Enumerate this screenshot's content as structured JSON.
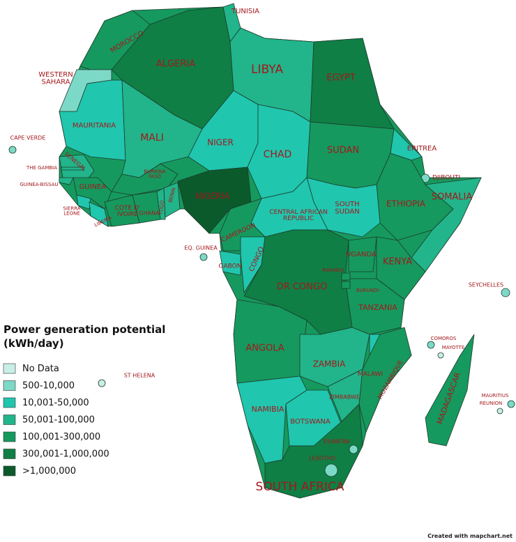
{
  "title": [
    "Power generation potential",
    "(kWh/day)"
  ],
  "legend": [
    {
      "label": "No Data",
      "color": "#c9eee8"
    },
    {
      "label": "500-10,000",
      "color": "#7dd9c7"
    },
    {
      "label": "10,001-50,000",
      "color": "#20c6ae"
    },
    {
      "label": "50,001-100,000",
      "color": "#22b48a"
    },
    {
      "label": "100,001-300,000",
      "color": "#16995e"
    },
    {
      "label": "300,001-1,000,000",
      "color": "#0f7f45"
    },
    {
      "label": ">1,000,000",
      "color": "#0b5a2c"
    }
  ],
  "countries": [
    {
      "label": [
        "MOROCCO"
      ],
      "color": "#16995e"
    },
    {
      "label": [
        "WESTERN",
        "SAHARA"
      ],
      "color": "#7dd9c7"
    },
    {
      "label": [
        "ALGERIA"
      ],
      "color": "#0f7f45"
    },
    {
      "label": [
        "TUNISIA"
      ],
      "color": "#22b48a"
    },
    {
      "label": [
        "LIBYA"
      ],
      "color": "#22b48a"
    },
    {
      "label": [
        "EGYPT"
      ],
      "color": "#0f7f45"
    },
    {
      "label": [
        "MAURITANIA"
      ],
      "color": "#20c6ae"
    },
    {
      "label": [
        "MALI"
      ],
      "color": "#22b48a"
    },
    {
      "label": [
        "NIGER"
      ],
      "color": "#20c6ae"
    },
    {
      "label": [
        "CHAD"
      ],
      "color": "#20c6ae"
    },
    {
      "label": [
        "SUDAN"
      ],
      "color": "#16995e"
    },
    {
      "label": [
        "ERITREA"
      ],
      "color": "#20c6ae"
    },
    {
      "label": [
        "DJIBOUTI"
      ],
      "color": "#7dd9c7"
    },
    {
      "label": [
        "ETHIOPIA"
      ],
      "color": "#16995e"
    },
    {
      "label": [
        "SOMALIA"
      ],
      "color": "#22b48a"
    },
    {
      "label": [
        "SOUTH",
        "SUDAN"
      ],
      "color": "#20c6ae"
    },
    {
      "label": [
        "CENTRAL AFRICAN",
        "REPUBLIC"
      ],
      "color": "#20c6ae"
    },
    {
      "label": [
        "NIGERIA"
      ],
      "color": "#0b5a2c"
    },
    {
      "label": [
        "CAMEROON"
      ],
      "color": "#16995e"
    },
    {
      "label": [
        "GABON"
      ],
      "color": "#20c6ae"
    },
    {
      "label": [
        "CONGO"
      ],
      "color": "#20c6ae"
    },
    {
      "label": [
        "DR CONGO"
      ],
      "color": "#0f7f45"
    },
    {
      "label": [
        "UGANDA"
      ],
      "color": "#16995e"
    },
    {
      "label": [
        "KENYA"
      ],
      "color": "#16995e"
    },
    {
      "label": [
        "TANZANIA"
      ],
      "color": "#16995e"
    },
    {
      "label": [
        "RWANDA"
      ],
      "color": "#16995e"
    },
    {
      "label": [
        "BURUNDI"
      ],
      "color": "#16995e"
    },
    {
      "label": [
        "ANGOLA"
      ],
      "color": "#16995e"
    },
    {
      "label": [
        "ZAMBIA"
      ],
      "color": "#22b48a"
    },
    {
      "label": [
        "MALAWI"
      ],
      "color": "#20c6ae"
    },
    {
      "label": [
        "MOZAMBIQUE"
      ],
      "color": "#16995e"
    },
    {
      "label": [
        "NAMIBIA"
      ],
      "color": "#20c6ae"
    },
    {
      "label": [
        "BOTSWANA"
      ],
      "color": "#20c6ae"
    },
    {
      "label": [
        "ZIMBABWE"
      ],
      "color": "#22b48a"
    },
    {
      "label": [
        "SOUTH AFRICA"
      ],
      "color": "#0f7f45"
    },
    {
      "label": [
        "LESOTHO"
      ],
      "color": "#7dd9c7"
    },
    {
      "label": [
        "ESWATINI"
      ],
      "color": "#7dd9c7"
    },
    {
      "label": [
        "MADAGASCAR"
      ],
      "color": "#16995e"
    },
    {
      "label": [
        "SENEGAL"
      ],
      "color": "#22b48a"
    },
    {
      "label": [
        "THE GAMBIA"
      ],
      "color": "#22b48a"
    },
    {
      "label": [
        "GUINEA-BISSAU"
      ],
      "color": "#22b48a"
    },
    {
      "label": [
        "GUINEA"
      ],
      "color": "#16995e"
    },
    {
      "label": [
        "SIERRA",
        "LEONE"
      ],
      "color": "#20c6ae"
    },
    {
      "label": [
        "LIBERIA"
      ],
      "color": "#20c6ae"
    },
    {
      "label": [
        "COTE D'",
        "IVOIRE"
      ],
      "color": "#16995e"
    },
    {
      "label": [
        "BURKINA",
        "FASO"
      ],
      "color": "#16995e"
    },
    {
      "label": [
        "GHANA"
      ],
      "color": "#16995e"
    },
    {
      "label": [
        "TOGO"
      ],
      "color": "#22b48a"
    },
    {
      "label": [
        "BENIN"
      ],
      "color": "#22b48a"
    },
    {
      "label": [
        "CAPE VERDE"
      ],
      "color": "#7dd9c7"
    },
    {
      "label": [
        "EQ. GUINEA"
      ],
      "color": "#7dd9c7"
    },
    {
      "label": [
        "ST HELENA"
      ],
      "color": "#c9eee8"
    },
    {
      "label": [
        "SEYCHELLES"
      ],
      "color": "#7dd9c7"
    },
    {
      "label": [
        "COMOROS"
      ],
      "color": "#7dd9c7"
    },
    {
      "label": [
        "MAYOTTE"
      ],
      "color": "#c9eee8"
    },
    {
      "label": [
        "MAURITIUS"
      ],
      "color": "#7dd9c7"
    },
    {
      "label": [
        "REUNION"
      ],
      "color": "#c9eee8"
    }
  ],
  "footer": "Created with mapchart.net"
}
